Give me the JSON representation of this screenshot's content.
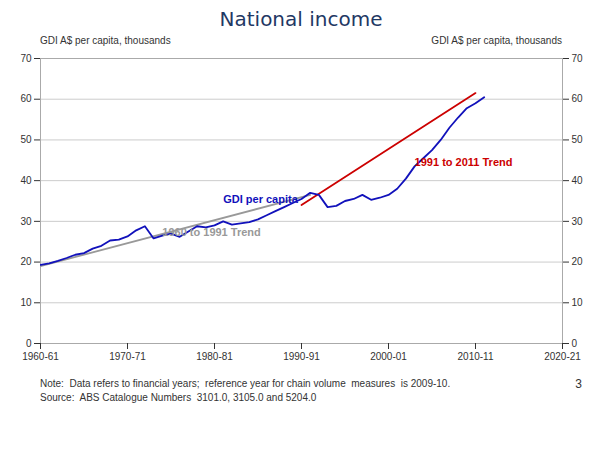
{
  "chart_data": {
    "type": "line",
    "title": "National income",
    "ylabel": "GDI A$ per capita, thousands",
    "y2label": "GDI A$ per capita, thousands",
    "caption": "Note:  Data refers to financial years;  reference year for chain volume  measures  is 2009-10.\nSource:  ABS Catalogue Numbers  3101.0, 3105.0 and 5204.0",
    "page_number": "3",
    "series": [
      {
        "name": "1960 to 1991 Trend",
        "color": "#999999",
        "x": [
          0,
          31
        ],
        "values": [
          19.0,
          36.5
        ]
      },
      {
        "name": "1991 to 2011 Trend",
        "color": "#CC0000",
        "x": [
          30,
          50
        ],
        "values": [
          34.0,
          61.5
        ]
      },
      {
        "name": "GDI per capita",
        "color": "#1111BB",
        "x": [
          0,
          1,
          2,
          3,
          4,
          5,
          6,
          7,
          8,
          9,
          10,
          11,
          12,
          13,
          14,
          15,
          16,
          17,
          18,
          19,
          20,
          21,
          22,
          23,
          24,
          25,
          26,
          27,
          28,
          29,
          30,
          31,
          32,
          33,
          34,
          35,
          36,
          37,
          38,
          39,
          40,
          41,
          42,
          43,
          44,
          45,
          46,
          47,
          48,
          49,
          50,
          51
        ],
        "values": [
          19.3,
          19.7,
          20.3,
          21.0,
          21.8,
          22.2,
          23.3,
          24.0,
          25.3,
          25.5,
          26.3,
          27.8,
          28.8,
          25.8,
          26.5,
          27.0,
          26.2,
          27.5,
          28.8,
          28.5,
          29.0,
          30.0,
          29.2,
          29.5,
          29.8,
          30.5,
          31.5,
          32.5,
          33.5,
          34.5,
          35.5,
          37.0,
          36.5,
          33.5,
          33.8,
          35.0,
          35.5,
          36.5,
          35.3,
          35.8,
          36.5,
          38.0,
          40.5,
          43.5,
          45.5,
          47.5,
          50.0,
          53.0,
          55.5,
          57.8,
          59.0,
          60.5
        ]
      }
    ],
    "annotations": [
      {
        "text": "GDI per capita",
        "x": 21,
        "y": 34.5
      },
      {
        "text": "1960 to 1991 Trend",
        "x": 14,
        "y": 26.5
      },
      {
        "text": "1991 to 2011 Trend",
        "x": 43,
        "y": 43.5
      }
    ],
    "xlim": [
      0,
      60
    ],
    "xticks": [
      {
        "value": 0,
        "label": "1960-61"
      },
      {
        "value": 10,
        "label": "1970-71"
      },
      {
        "value": 20,
        "label": "1980-81"
      },
      {
        "value": 30,
        "label": "1990-91"
      },
      {
        "value": 40,
        "label": "2000-01"
      },
      {
        "value": 50,
        "label": "2010-11"
      },
      {
        "value": 60,
        "label": "2020-21"
      }
    ],
    "ylim": [
      0,
      70
    ],
    "yticks": [
      0,
      10,
      20,
      30,
      40,
      50,
      60,
      70
    ],
    "y2lim": [
      0,
      70
    ],
    "y2ticks": [
      0,
      10,
      20,
      30,
      40,
      50,
      60,
      70
    ],
    "grid": true
  }
}
